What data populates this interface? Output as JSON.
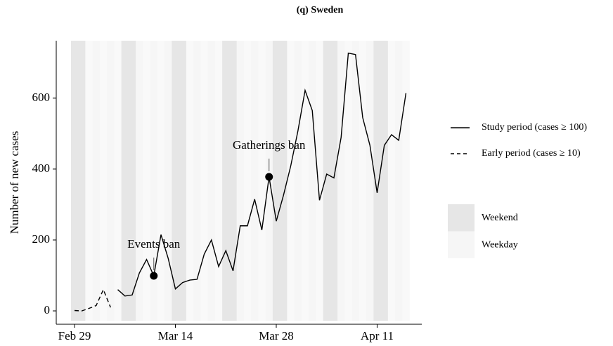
{
  "chart_data": {
    "type": "line",
    "title": "(q) Sweden",
    "y_label": "Number of new cases",
    "x": [
      "Feb 29",
      "Mar 1",
      "Mar 2",
      "Mar 3",
      "Mar 4",
      "Mar 5",
      "Mar 6",
      "Mar 7",
      "Mar 8",
      "Mar 9",
      "Mar 10",
      "Mar 11",
      "Mar 12",
      "Mar 13",
      "Mar 14",
      "Mar 15",
      "Mar 16",
      "Mar 17",
      "Mar 18",
      "Mar 19",
      "Mar 20",
      "Mar 21",
      "Mar 22",
      "Mar 23",
      "Mar 24",
      "Mar 25",
      "Mar 26",
      "Mar 27",
      "Mar 28",
      "Mar 29",
      "Mar 30",
      "Mar 31",
      "Apr 1",
      "Apr 2",
      "Apr 3",
      "Apr 4",
      "Apr 5",
      "Apr 6",
      "Apr 7",
      "Apr 8",
      "Apr 9",
      "Apr 10",
      "Apr 11",
      "Apr 12",
      "Apr 13",
      "Apr 14",
      "Apr 15"
    ],
    "xticks": [
      "Feb 29",
      "Mar 14",
      "Mar 28",
      "Apr 11"
    ],
    "series": [
      {
        "name": "Study period (cases ≥ 100)",
        "color": "#000000",
        "dash": "solid",
        "values": [
          null,
          null,
          null,
          null,
          null,
          null,
          60,
          42,
          45,
          107,
          145,
          99,
          215,
          148,
          62,
          80,
          87,
          89,
          160,
          200,
          125,
          170,
          113,
          240,
          240,
          315,
          228,
          378,
          253,
          326,
          408,
          507,
          622,
          565,
          312,
          386,
          375,
          489,
          727,
          723,
          545,
          467,
          333,
          467,
          497,
          481,
          614
        ]
      },
      {
        "name": "Early period (cases ≥ 10)",
        "color": "#000000",
        "dash": "dashed",
        "values": [
          1,
          0,
          7,
          15,
          60,
          10,
          null,
          null,
          null,
          null,
          null,
          null,
          null,
          null,
          null,
          null,
          null,
          null,
          null,
          null,
          null,
          null,
          null,
          null,
          null,
          null,
          null,
          null,
          null,
          null,
          null,
          null,
          null,
          null,
          null,
          null,
          null,
          null,
          null,
          null,
          null,
          null,
          null,
          null,
          null,
          null,
          null
        ]
      }
    ],
    "weekend": [
      true,
      true,
      false,
      false,
      false,
      false,
      false,
      true,
      true,
      false,
      false,
      false,
      false,
      false,
      true,
      true,
      false,
      false,
      false,
      false,
      false,
      true,
      true,
      false,
      false,
      false,
      false,
      false,
      true,
      true,
      false,
      false,
      false,
      false,
      false,
      true,
      true,
      false,
      false,
      false,
      false,
      false,
      true,
      true,
      false,
      false,
      false
    ],
    "shading": [
      {
        "name": "Weekend",
        "color": "#e6e6e6"
      },
      {
        "name": "Weekday",
        "color": "#f6f6f6"
      }
    ],
    "annotations": [
      {
        "label": "Events ban",
        "x": "Mar 11",
        "y": 99
      },
      {
        "label": "Gatherings ban",
        "x": "Mar 27",
        "y": 378
      }
    ],
    "ylim": [
      -37.6,
      762
    ],
    "yticks": [
      0,
      200,
      400,
      600
    ]
  }
}
